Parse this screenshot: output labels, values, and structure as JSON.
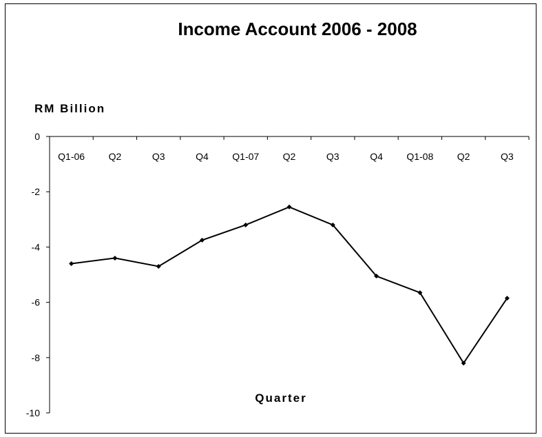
{
  "chart_data": {
    "type": "line",
    "title": "Income Account  2006 - 2008",
    "ylabel": "RM  Billion",
    "xlabel": "Quarter",
    "categories": [
      "Q1-06",
      "Q2",
      "Q3",
      "Q4",
      "Q1-07",
      "Q2",
      "Q3",
      "Q4",
      "Q1-08",
      "Q2",
      "Q3"
    ],
    "ylim": [
      -10,
      0
    ],
    "yticks": [
      0,
      -2,
      -4,
      -6,
      -8,
      -10
    ],
    "ytick_labels": [
      "0",
      "-2",
      "-4",
      "-6",
      "-8",
      "-10"
    ],
    "series": [
      {
        "values": [
          -4.6,
          -4.4,
          -4.7,
          -3.75,
          -3.2,
          -2.55,
          -3.2,
          -5.05,
          -5.65,
          -8.2,
          -5.85
        ]
      }
    ],
    "grid": false,
    "line_color": "#000000"
  }
}
